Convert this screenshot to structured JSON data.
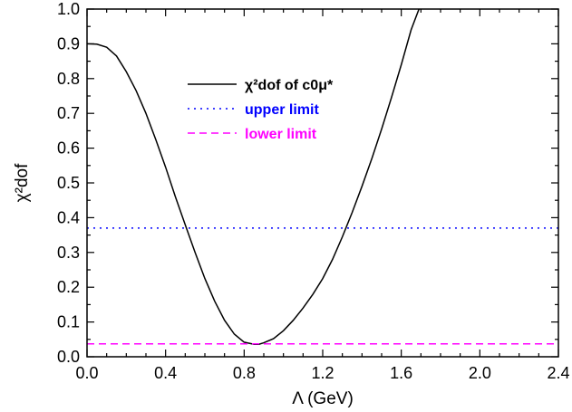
{
  "chart_data": {
    "type": "line",
    "xlabel": "Λ  (GeV)",
    "ylabel": "χ²dof",
    "xlim": [
      0.0,
      2.4
    ],
    "ylim": [
      0.0,
      1.0
    ],
    "xticks": [
      "0.0",
      "0.4",
      "0.8",
      "1.2",
      "1.6",
      "2.0",
      "2.4"
    ],
    "yticks": [
      "0.0",
      "0.1",
      "0.2",
      "0.3",
      "0.4",
      "0.5",
      "0.6",
      "0.7",
      "0.8",
      "0.9",
      "1.0"
    ],
    "grid": false,
    "legend_position": "top-center",
    "series": [
      {
        "name": "χ²dof of c0μ*",
        "style": "solid",
        "color": "#000000",
        "x": [
          0.0,
          0.05,
          0.1,
          0.15,
          0.2,
          0.25,
          0.3,
          0.35,
          0.4,
          0.45,
          0.5,
          0.55,
          0.6,
          0.65,
          0.7,
          0.75,
          0.8,
          0.85,
          0.875,
          0.9,
          0.95,
          1.0,
          1.05,
          1.1,
          1.15,
          1.2,
          1.25,
          1.3,
          1.35,
          1.4,
          1.45,
          1.5,
          1.55,
          1.6,
          1.65,
          1.69
        ],
        "y": [
          0.9,
          0.899,
          0.89,
          0.865,
          0.82,
          0.765,
          0.7,
          0.625,
          0.545,
          0.46,
          0.38,
          0.3,
          0.225,
          0.16,
          0.105,
          0.065,
          0.042,
          0.036,
          0.036,
          0.04,
          0.052,
          0.075,
          0.105,
          0.14,
          0.18,
          0.225,
          0.28,
          0.345,
          0.415,
          0.49,
          0.57,
          0.655,
          0.745,
          0.84,
          0.94,
          1.0
        ]
      },
      {
        "name": "upper limit",
        "style": "dotted",
        "color": "#0000ff",
        "x": [
          0.0,
          2.4
        ],
        "y": [
          0.37,
          0.37
        ]
      },
      {
        "name": "lower limit",
        "style": "dashed",
        "color": "#ff00ff",
        "x": [
          0.0,
          2.4
        ],
        "y": [
          0.037,
          0.037
        ]
      }
    ]
  }
}
